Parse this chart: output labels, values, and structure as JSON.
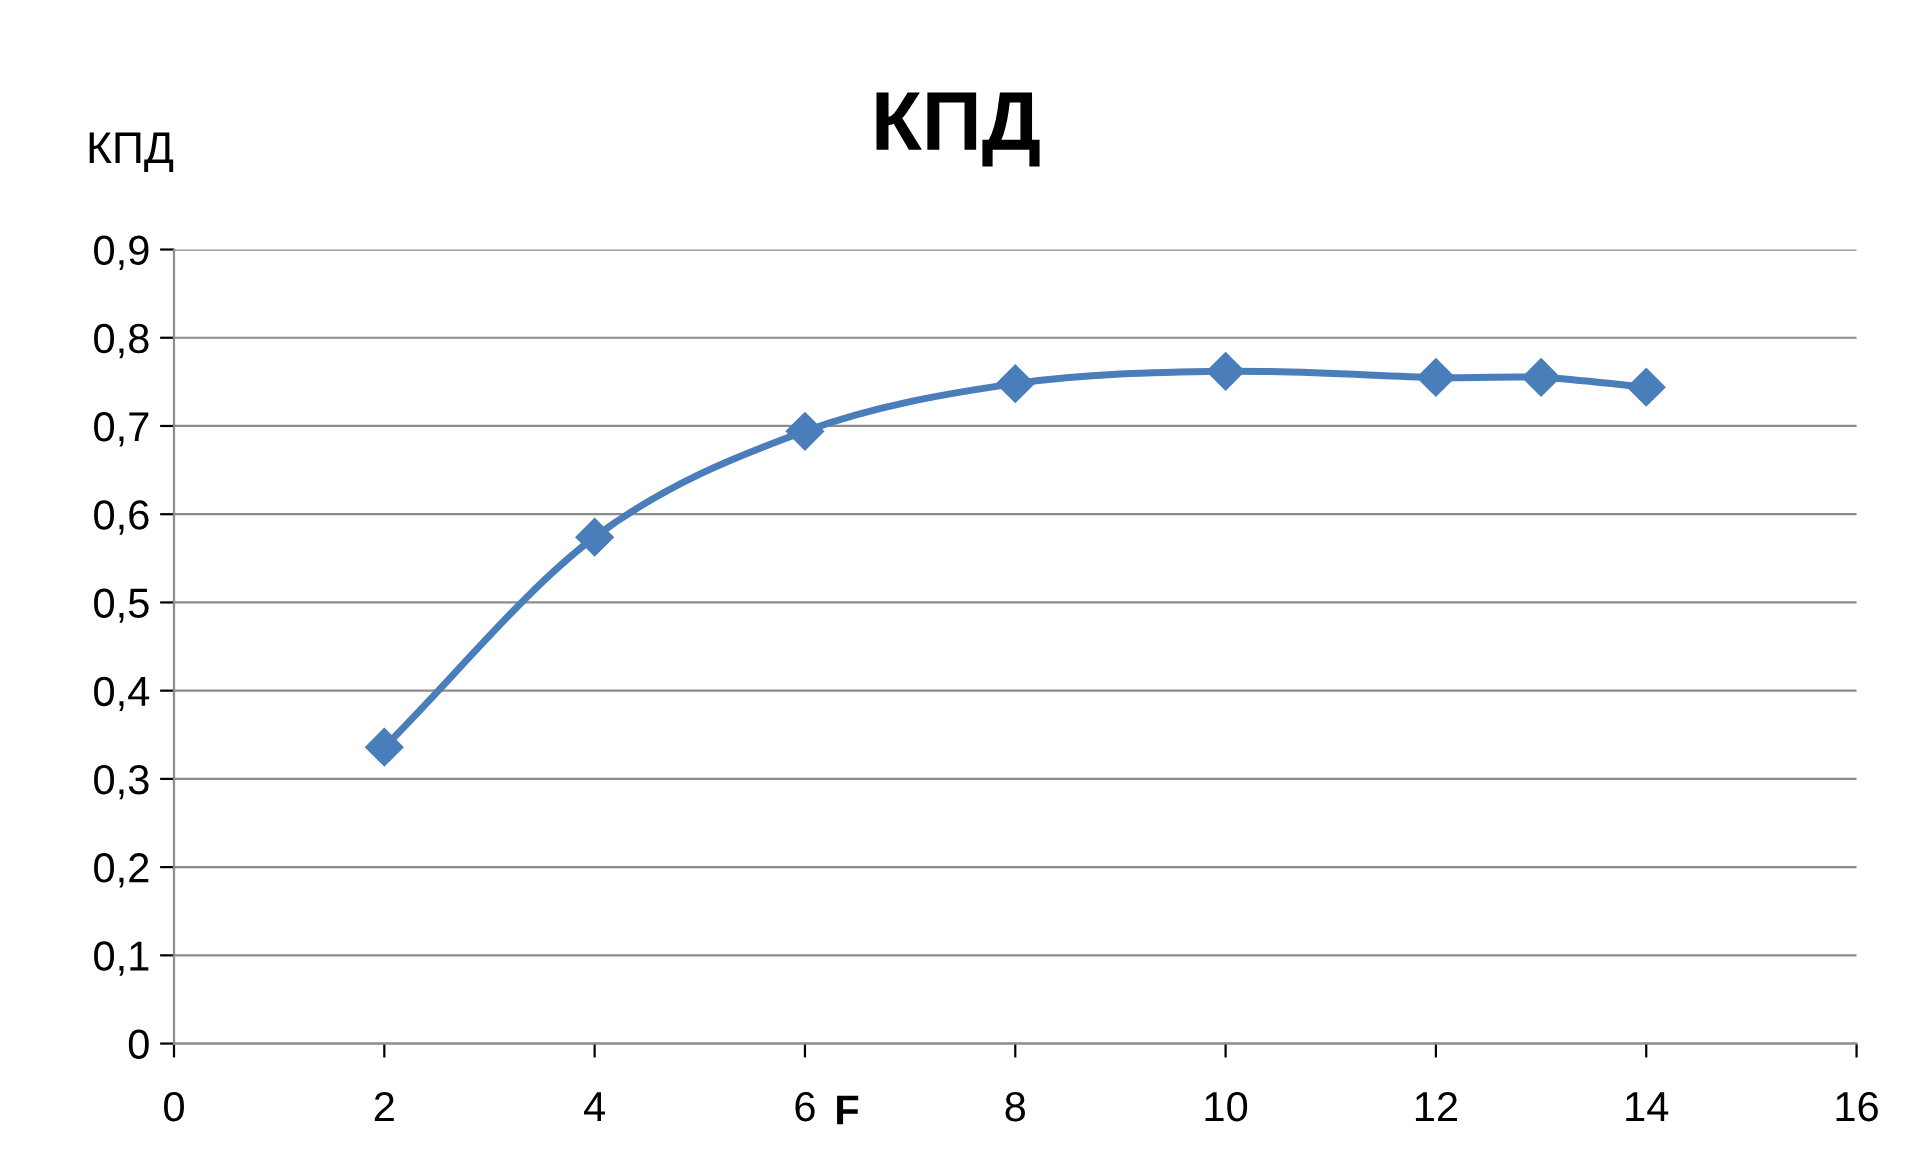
{
  "chart_data": {
    "type": "line",
    "title": "КПД",
    "xlabel": "F",
    "ylabel": "КПД",
    "x": [
      2,
      4,
      6,
      8,
      10,
      12,
      13,
      14
    ],
    "series": [
      {
        "color": "#4a7ebb",
        "values": [
          0.336,
          0.574,
          0.694,
          0.748,
          0.762,
          0.755,
          0.755,
          0.744
        ]
      }
    ],
    "xlim": [
      0,
      16
    ],
    "xticks": [
      0,
      2,
      4,
      6,
      8,
      10,
      12,
      14,
      16
    ],
    "ylim": [
      0,
      0.9
    ],
    "yticks": [
      0,
      {
        "value": 0.1,
        "label": "0,1"
      },
      {
        "value": 0.2,
        "label": "0,2"
      },
      {
        "value": 0.3,
        "label": "0,3"
      },
      {
        "value": 0.4,
        "label": "0,4"
      },
      {
        "value": 0.5,
        "label": "0,5"
      },
      {
        "value": 0.6,
        "label": "0,6"
      },
      {
        "value": 0.7,
        "label": "0,7"
      },
      {
        "value": 0.8,
        "label": "0,8"
      },
      {
        "value": 0.9,
        "label": "0,9"
      }
    ],
    "grid": "y",
    "marker": "diamond",
    "line_style": "solid",
    "legend": false
  }
}
